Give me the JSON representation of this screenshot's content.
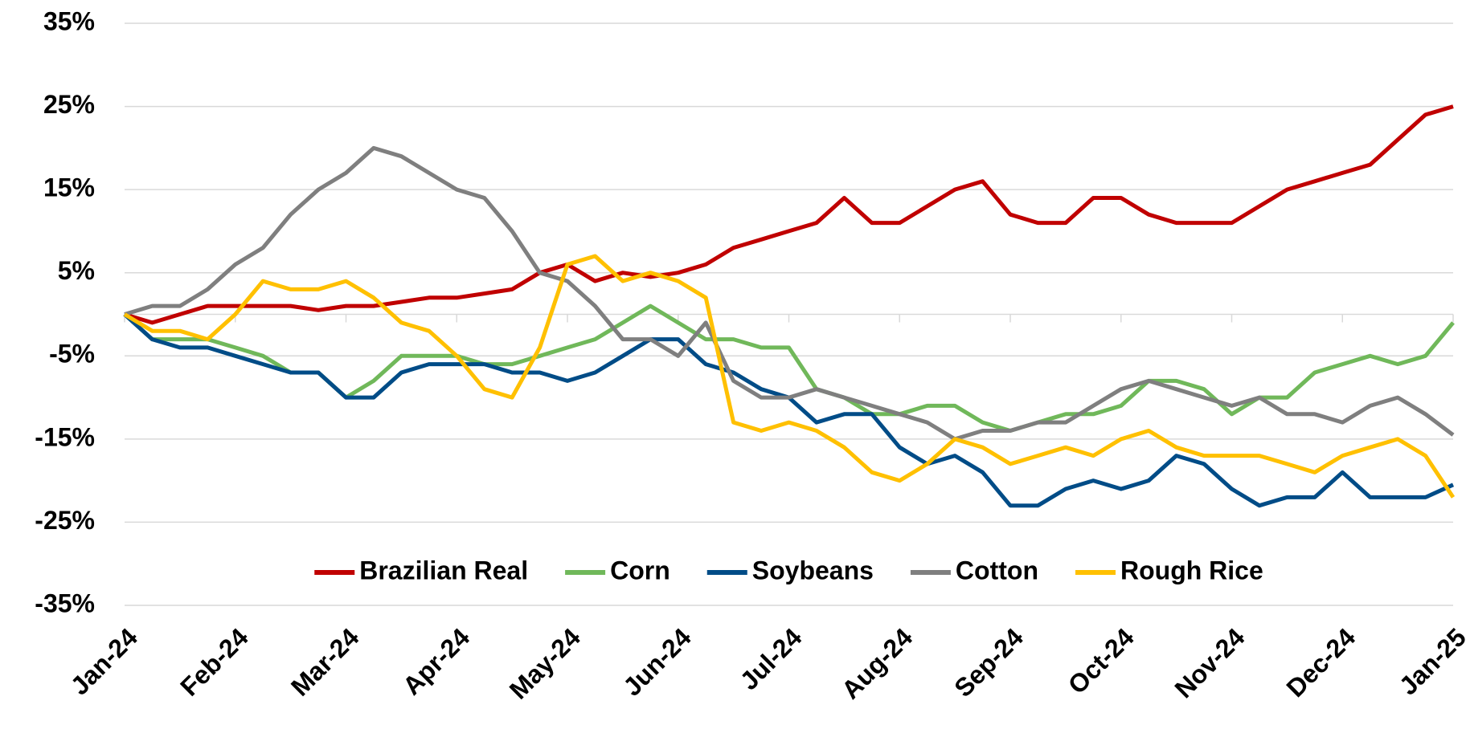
{
  "chart_data": {
    "type": "line",
    "categories": [
      "Jan-24",
      null,
      null,
      null,
      "Feb-24",
      null,
      null,
      null,
      "Mar-24",
      null,
      null,
      null,
      "Apr-24",
      null,
      null,
      null,
      "May-24",
      null,
      null,
      null,
      "Jun-24",
      null,
      null,
      null,
      "Jul-24",
      null,
      null,
      null,
      "Aug-24",
      null,
      null,
      null,
      "Sep-24",
      null,
      null,
      null,
      "Oct-24",
      null,
      null,
      null,
      "Nov-24",
      null,
      null,
      null,
      "Dec-24",
      null,
      null,
      null,
      "Jan-25"
    ],
    "series": [
      {
        "name": "Brazilian Real",
        "color": "#c00000",
        "values": [
          0,
          -1,
          0,
          1,
          1,
          1,
          1,
          0.5,
          1,
          1,
          1.5,
          2,
          2,
          2.5,
          3,
          5,
          6,
          4,
          5,
          4.5,
          5,
          6,
          8,
          9,
          10,
          11,
          14,
          11,
          11,
          13,
          15,
          16,
          12,
          11,
          11,
          14,
          14,
          12,
          11,
          11,
          11,
          13,
          15,
          16,
          17,
          18,
          21,
          24,
          25
        ]
      },
      {
        "name": "Corn",
        "color": "#70b85a",
        "values": [
          0,
          -3,
          -3,
          -3,
          -4,
          -5,
          -7,
          -7,
          -10,
          -8,
          -5,
          -5,
          -5,
          -6,
          -6,
          -5,
          -4,
          -3,
          -1,
          1,
          -1,
          -3,
          -3,
          -4,
          -4,
          -9,
          -10,
          -12,
          -12,
          -11,
          -11,
          -13,
          -14,
          -13,
          -12,
          -12,
          -11,
          -8,
          -8,
          -9,
          -12,
          -10,
          -10,
          -7,
          -6,
          -5,
          -6,
          -5,
          -1
        ]
      },
      {
        "name": "Soybeans",
        "color": "#004c87",
        "values": [
          0,
          -3,
          -4,
          -4,
          -5,
          -6,
          -7,
          -7,
          -10,
          -10,
          -7,
          -6,
          -6,
          -6,
          -7,
          -7,
          -8,
          -7,
          -5,
          -3,
          -3,
          -6,
          -7,
          -9,
          -10,
          -13,
          -12,
          -12,
          -16,
          -18,
          -17,
          -19,
          -23,
          -23,
          -21,
          -20,
          -21,
          -20,
          -17,
          -18,
          -21,
          -23,
          -22,
          -22,
          -19,
          -22,
          -22,
          -22,
          -20.5
        ]
      },
      {
        "name": "Cotton",
        "color": "#7f7f7f",
        "values": [
          0,
          1,
          1,
          3,
          6,
          8,
          12,
          15,
          17,
          20,
          19,
          17,
          15,
          14,
          10,
          5,
          4,
          1,
          -3,
          -3,
          -5,
          -1,
          -8,
          -10,
          -10,
          -9,
          -10,
          -11,
          -12,
          -13,
          -15,
          -14,
          -14,
          -13,
          -13,
          -11,
          -9,
          -8,
          -9,
          -10,
          -11,
          -10,
          -12,
          -12,
          -13,
          -11,
          -10,
          -12,
          -14.5
        ]
      },
      {
        "name": "Rough Rice",
        "color": "#ffc000",
        "values": [
          0,
          -2,
          -2,
          -3,
          0,
          4,
          3,
          3,
          4,
          2,
          -1,
          -2,
          -5,
          -9,
          -10,
          -4,
          6,
          7,
          4,
          5,
          4,
          2,
          -13,
          -14,
          -13,
          -14,
          -16,
          -19,
          -20,
          -18,
          -15,
          -16,
          -18,
          -17,
          -16,
          -17,
          -15,
          -14,
          -16,
          -17,
          -17,
          -17,
          -18,
          -19,
          -17,
          -16,
          -15,
          -17,
          -22
        ]
      }
    ],
    "ylim": [
      -35,
      35
    ],
    "yticks": [
      {
        "value": 35,
        "label": "35%"
      },
      {
        "value": 25,
        "label": "25%"
      },
      {
        "value": 15,
        "label": "15%"
      },
      {
        "value": 5,
        "label": "5%"
      },
      {
        "value": -5,
        "label": "-5%"
      },
      {
        "value": -15,
        "label": "-15%"
      },
      {
        "value": -25,
        "label": "-25%"
      },
      {
        "value": -35,
        "label": "-35%"
      }
    ],
    "grid": true,
    "legend": "bottom"
  }
}
